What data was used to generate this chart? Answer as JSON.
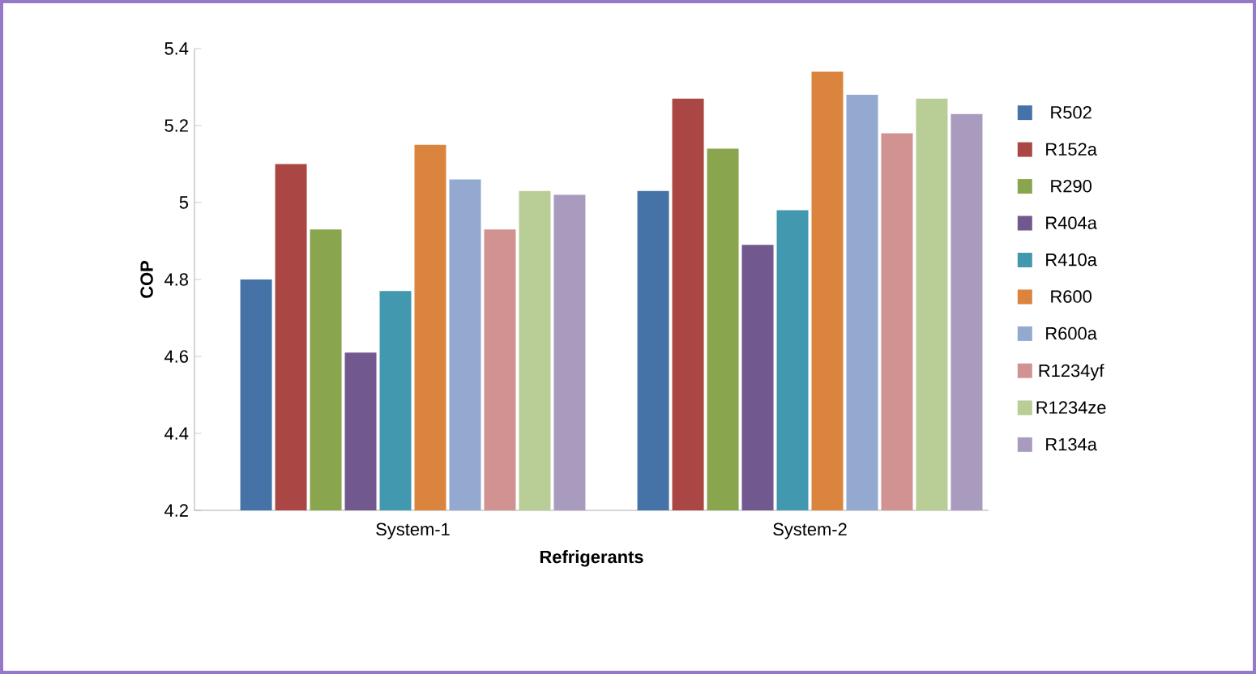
{
  "chart_data": {
    "type": "bar",
    "xlabel": "Refrigerants",
    "ylabel": "COP",
    "categories": [
      "System-1",
      "System-2"
    ],
    "series": [
      {
        "name": "R502",
        "color": "#4572a7",
        "values": [
          4.8,
          5.03
        ]
      },
      {
        "name": "R152a",
        "color": "#aa4643",
        "values": [
          5.1,
          5.27
        ]
      },
      {
        "name": "R290",
        "color": "#89a54e",
        "values": [
          4.93,
          5.14
        ]
      },
      {
        "name": "R404a",
        "color": "#71588f",
        "values": [
          4.61,
          4.89
        ]
      },
      {
        "name": "R410a",
        "color": "#4198af",
        "values": [
          4.77,
          4.98
        ]
      },
      {
        "name": "R600",
        "color": "#db843d",
        "values": [
          5.15,
          5.34
        ]
      },
      {
        "name": "R600a",
        "color": "#93a9cf",
        "values": [
          5.06,
          5.28
        ]
      },
      {
        "name": "R1234yf",
        "color": "#d19392",
        "values": [
          4.93,
          5.18
        ]
      },
      {
        "name": "R1234ze",
        "color": "#b9cd96",
        "values": [
          5.03,
          5.27
        ]
      },
      {
        "name": "R134a",
        "color": "#a99bbd",
        "values": [
          5.02,
          5.23
        ]
      }
    ],
    "ylim": [
      4.2,
      5.4
    ],
    "yticks": [
      4.2,
      4.4,
      4.6,
      4.8,
      5,
      5.2,
      5.4
    ],
    "legend": "right",
    "grid": false
  }
}
